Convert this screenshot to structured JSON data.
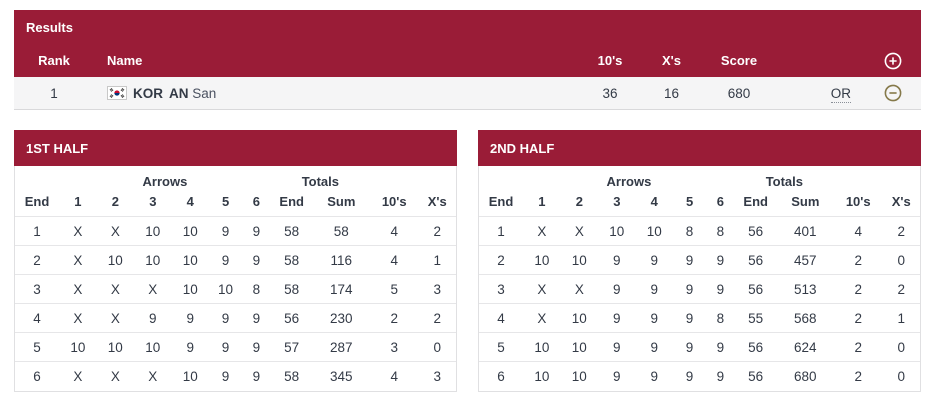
{
  "colors": {
    "maroon": "#9a1c37",
    "row_bg": "#f5f5f6",
    "text_dark": "#333a46",
    "minus_icon_olive": "#85794a",
    "plus_icon_white": "#ffffff",
    "flag_red": "#c60c30",
    "flag_blue": "#003478"
  },
  "results": {
    "title": "Results",
    "columns": {
      "rank": "Rank",
      "name": "Name",
      "tens": "10's",
      "xs": "X's",
      "score": "Score"
    },
    "row": {
      "rank": "1",
      "noc": "KOR",
      "surname": "AN",
      "given": "San",
      "tens": "36",
      "xs": "16",
      "score": "680",
      "record": "OR"
    }
  },
  "halves": [
    {
      "title": "1ST HALF",
      "group_headers": {
        "arrows": "Arrows",
        "totals": "Totals"
      },
      "columns": [
        "End",
        "1",
        "2",
        "3",
        "4",
        "5",
        "6",
        "End",
        "Sum",
        "10's",
        "X's"
      ],
      "rows": [
        [
          "1",
          "X",
          "X",
          "10",
          "10",
          "9",
          "9",
          "58",
          "58",
          "4",
          "2"
        ],
        [
          "2",
          "X",
          "10",
          "10",
          "10",
          "9",
          "9",
          "58",
          "116",
          "4",
          "1"
        ],
        [
          "3",
          "X",
          "X",
          "X",
          "10",
          "10",
          "8",
          "58",
          "174",
          "5",
          "3"
        ],
        [
          "4",
          "X",
          "X",
          "9",
          "9",
          "9",
          "9",
          "56",
          "230",
          "2",
          "2"
        ],
        [
          "5",
          "10",
          "10",
          "10",
          "9",
          "9",
          "9",
          "57",
          "287",
          "3",
          "0"
        ],
        [
          "6",
          "X",
          "X",
          "X",
          "10",
          "9",
          "9",
          "58",
          "345",
          "4",
          "3"
        ]
      ]
    },
    {
      "title": "2ND HALF",
      "group_headers": {
        "arrows": "Arrows",
        "totals": "Totals"
      },
      "columns": [
        "End",
        "1",
        "2",
        "3",
        "4",
        "5",
        "6",
        "End",
        "Sum",
        "10's",
        "X's"
      ],
      "rows": [
        [
          "1",
          "X",
          "X",
          "10",
          "10",
          "8",
          "8",
          "56",
          "401",
          "4",
          "2"
        ],
        [
          "2",
          "10",
          "10",
          "9",
          "9",
          "9",
          "9",
          "56",
          "457",
          "2",
          "0"
        ],
        [
          "3",
          "X",
          "X",
          "9",
          "9",
          "9",
          "9",
          "56",
          "513",
          "2",
          "2"
        ],
        [
          "4",
          "X",
          "10",
          "9",
          "9",
          "9",
          "8",
          "55",
          "568",
          "2",
          "1"
        ],
        [
          "5",
          "10",
          "10",
          "9",
          "9",
          "9",
          "9",
          "56",
          "624",
          "2",
          "0"
        ],
        [
          "6",
          "10",
          "10",
          "9",
          "9",
          "9",
          "9",
          "56",
          "680",
          "2",
          "0"
        ]
      ]
    }
  ]
}
